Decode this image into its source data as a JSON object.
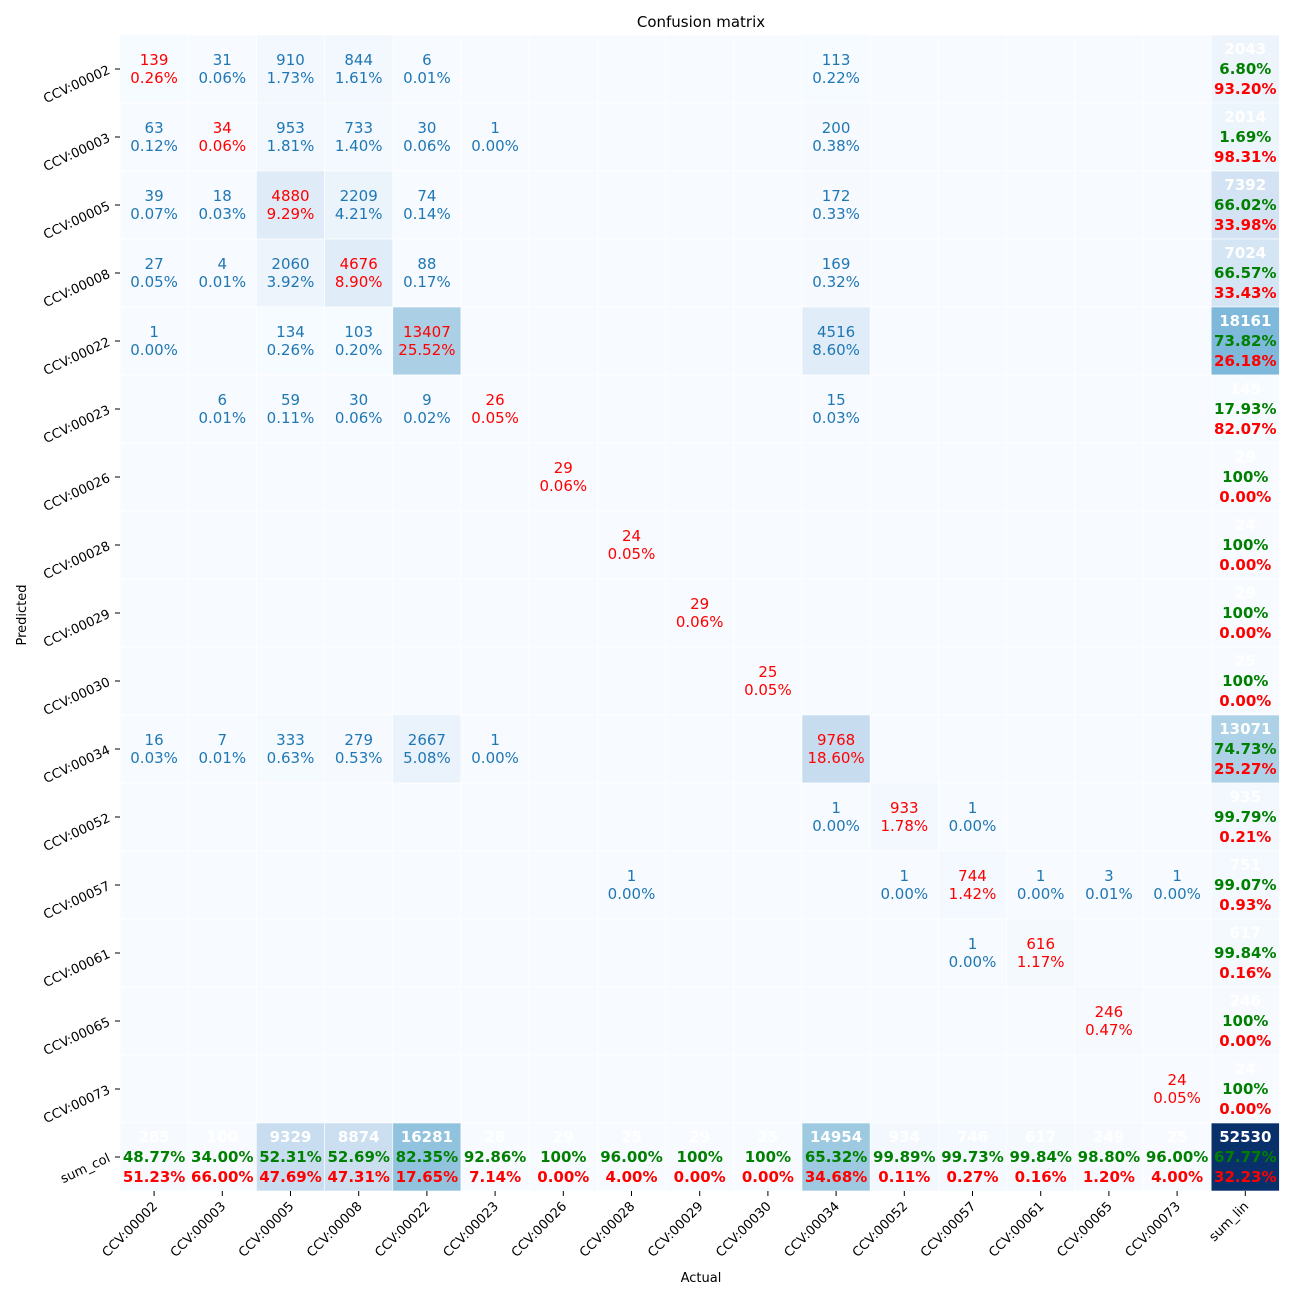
{
  "chart_data": {
    "type": "heatmap",
    "title": "Confusion matrix",
    "xlabel": "Actual",
    "ylabel": "Predicted",
    "labels": [
      "CCV:00002",
      "CCV:00003",
      "CCV:00005",
      "CCV:00008",
      "CCV:00022",
      "CCV:00023",
      "CCV:00026",
      "CCV:00028",
      "CCV:00029",
      "CCV:00030",
      "CCV:00034",
      "CCV:00052",
      "CCV:00057",
      "CCV:00061",
      "CCV:00065",
      "CCV:00073"
    ],
    "sum_row_label": "sum_col",
    "sum_col_label": "sum_lin",
    "matrix": [
      [
        139,
        31,
        910,
        844,
        6,
        0,
        0,
        0,
        0,
        0,
        113,
        0,
        0,
        0,
        0,
        0
      ],
      [
        63,
        34,
        953,
        733,
        30,
        1,
        0,
        0,
        0,
        0,
        200,
        0,
        0,
        0,
        0,
        0
      ],
      [
        39,
        18,
        4880,
        2209,
        74,
        0,
        0,
        0,
        0,
        0,
        172,
        0,
        0,
        0,
        0,
        0
      ],
      [
        27,
        4,
        2060,
        4676,
        88,
        0,
        0,
        0,
        0,
        0,
        169,
        0,
        0,
        0,
        0,
        0
      ],
      [
        1,
        0,
        134,
        103,
        13407,
        0,
        0,
        0,
        0,
        0,
        4516,
        0,
        0,
        0,
        0,
        0
      ],
      [
        0,
        6,
        59,
        30,
        9,
        26,
        0,
        0,
        0,
        0,
        15,
        0,
        0,
        0,
        0,
        0
      ],
      [
        0,
        0,
        0,
        0,
        0,
        0,
        29,
        0,
        0,
        0,
        0,
        0,
        0,
        0,
        0,
        0
      ],
      [
        0,
        0,
        0,
        0,
        0,
        0,
        0,
        24,
        0,
        0,
        0,
        0,
        0,
        0,
        0,
        0
      ],
      [
        0,
        0,
        0,
        0,
        0,
        0,
        0,
        0,
        29,
        0,
        0,
        0,
        0,
        0,
        0,
        0
      ],
      [
        0,
        0,
        0,
        0,
        0,
        0,
        0,
        0,
        0,
        25,
        0,
        0,
        0,
        0,
        0,
        0
      ],
      [
        16,
        7,
        333,
        279,
        2667,
        1,
        0,
        0,
        0,
        0,
        9768,
        0,
        0,
        0,
        0,
        0
      ],
      [
        0,
        0,
        0,
        0,
        0,
        0,
        0,
        0,
        0,
        0,
        1,
        933,
        1,
        0,
        0,
        0
      ],
      [
        0,
        0,
        0,
        0,
        0,
        0,
        0,
        1,
        0,
        0,
        0,
        1,
        744,
        1,
        3,
        1
      ],
      [
        0,
        0,
        0,
        0,
        0,
        0,
        0,
        0,
        0,
        0,
        0,
        0,
        1,
        616,
        0,
        0
      ],
      [
        0,
        0,
        0,
        0,
        0,
        0,
        0,
        0,
        0,
        0,
        0,
        0,
        0,
        0,
        246,
        0
      ],
      [
        0,
        0,
        0,
        0,
        0,
        0,
        0,
        0,
        0,
        0,
        0,
        0,
        0,
        0,
        0,
        24
      ]
    ],
    "cell_percents": [
      [
        "0.26%",
        "0.06%",
        "1.73%",
        "1.61%",
        "0.01%",
        "",
        "",
        "",
        "",
        "",
        "0.22%",
        "",
        "",
        "",
        "",
        ""
      ],
      [
        "0.12%",
        "0.06%",
        "1.81%",
        "1.40%",
        "0.06%",
        "0.00%",
        "",
        "",
        "",
        "",
        "0.38%",
        "",
        "",
        "",
        "",
        ""
      ],
      [
        "0.07%",
        "0.03%",
        "9.29%",
        "4.21%",
        "0.14%",
        "",
        "",
        "",
        "",
        "",
        "0.33%",
        "",
        "",
        "",
        "",
        ""
      ],
      [
        "0.05%",
        "0.01%",
        "3.92%",
        "8.90%",
        "0.17%",
        "",
        "",
        "",
        "",
        "",
        "0.32%",
        "",
        "",
        "",
        "",
        ""
      ],
      [
        "0.00%",
        "",
        "0.26%",
        "0.20%",
        "25.52%",
        "",
        "",
        "",
        "",
        "",
        "8.60%",
        "",
        "",
        "",
        "",
        ""
      ],
      [
        "",
        "0.01%",
        "0.11%",
        "0.06%",
        "0.02%",
        "0.05%",
        "",
        "",
        "",
        "",
        "0.03%",
        "",
        "",
        "",
        "",
        ""
      ],
      [
        "",
        "",
        "",
        "",
        "",
        "",
        "0.06%",
        "",
        "",
        "",
        "",
        "",
        "",
        "",
        "",
        ""
      ],
      [
        "",
        "",
        "",
        "",
        "",
        "",
        "",
        "0.05%",
        "",
        "",
        "",
        "",
        "",
        "",
        "",
        ""
      ],
      [
        "",
        "",
        "",
        "",
        "",
        "",
        "",
        "",
        "0.06%",
        "",
        "",
        "",
        "",
        "",
        "",
        ""
      ],
      [
        "",
        "",
        "",
        "",
        "",
        "",
        "",
        "",
        "",
        "0.05%",
        "",
        "",
        "",
        "",
        "",
        ""
      ],
      [
        "0.03%",
        "0.01%",
        "0.63%",
        "0.53%",
        "5.08%",
        "0.00%",
        "",
        "",
        "",
        "",
        "18.60%",
        "",
        "",
        "",
        "",
        ""
      ],
      [
        "",
        "",
        "",
        "",
        "",
        "",
        "",
        "",
        "",
        "",
        "0.00%",
        "1.78%",
        "0.00%",
        "",
        "",
        ""
      ],
      [
        "",
        "",
        "",
        "",
        "",
        "",
        "",
        "0.00%",
        "",
        "",
        "",
        "0.00%",
        "1.42%",
        "0.00%",
        "0.01%",
        "0.00%"
      ],
      [
        "",
        "",
        "",
        "",
        "",
        "",
        "",
        "",
        "",
        "",
        "",
        "",
        "0.00%",
        "1.17%",
        "",
        ""
      ],
      [
        "",
        "",
        "",
        "",
        "",
        "",
        "",
        "",
        "",
        "",
        "",
        "",
        "",
        "",
        "0.47%",
        ""
      ],
      [
        "",
        "",
        "",
        "",
        "",
        "",
        "",
        "",
        "",
        "",
        "",
        "",
        "",
        "",
        "",
        "0.05%"
      ]
    ],
    "row_sums": [
      2043,
      2014,
      7392,
      7024,
      18161,
      145,
      29,
      24,
      29,
      25,
      13071,
      935,
      751,
      617,
      246,
      24
    ],
    "row_correct": [
      "6.80%",
      "1.69%",
      "66.02%",
      "66.57%",
      "73.82%",
      "17.93%",
      "100%",
      "100%",
      "100%",
      "100%",
      "74.73%",
      "99.79%",
      "99.07%",
      "99.84%",
      "100%",
      "100%"
    ],
    "row_error": [
      "93.20%",
      "98.31%",
      "33.98%",
      "33.43%",
      "26.18%",
      "82.07%",
      "0.00%",
      "0.00%",
      "0.00%",
      "0.00%",
      "25.27%",
      "0.21%",
      "0.93%",
      "0.16%",
      "0.00%",
      "0.00%"
    ],
    "col_sums": [
      285,
      100,
      9329,
      8874,
      16281,
      28,
      29,
      25,
      29,
      25,
      14954,
      934,
      746,
      617,
      249,
      25
    ],
    "col_correct": [
      "48.77%",
      "34.00%",
      "52.31%",
      "52.69%",
      "82.35%",
      "92.86%",
      "100%",
      "96.00%",
      "100%",
      "100%",
      "65.32%",
      "99.89%",
      "99.73%",
      "99.84%",
      "98.80%",
      "96.00%"
    ],
    "col_error": [
      "51.23%",
      "66.00%",
      "47.69%",
      "47.31%",
      "17.65%",
      "7.14%",
      "0.00%",
      "4.00%",
      "0.00%",
      "0.00%",
      "34.68%",
      "0.11%",
      "0.27%",
      "0.16%",
      "1.20%",
      "4.00%"
    ],
    "total": 52530,
    "total_correct": "67.77%",
    "total_error": "32.23%",
    "colormap": "Blues",
    "colors": {
      "correct": "#008000",
      "error": "#ff0000",
      "value": "#1f77b4",
      "sum_text": "#ffffff",
      "cell_border": "#ffffff"
    }
  }
}
